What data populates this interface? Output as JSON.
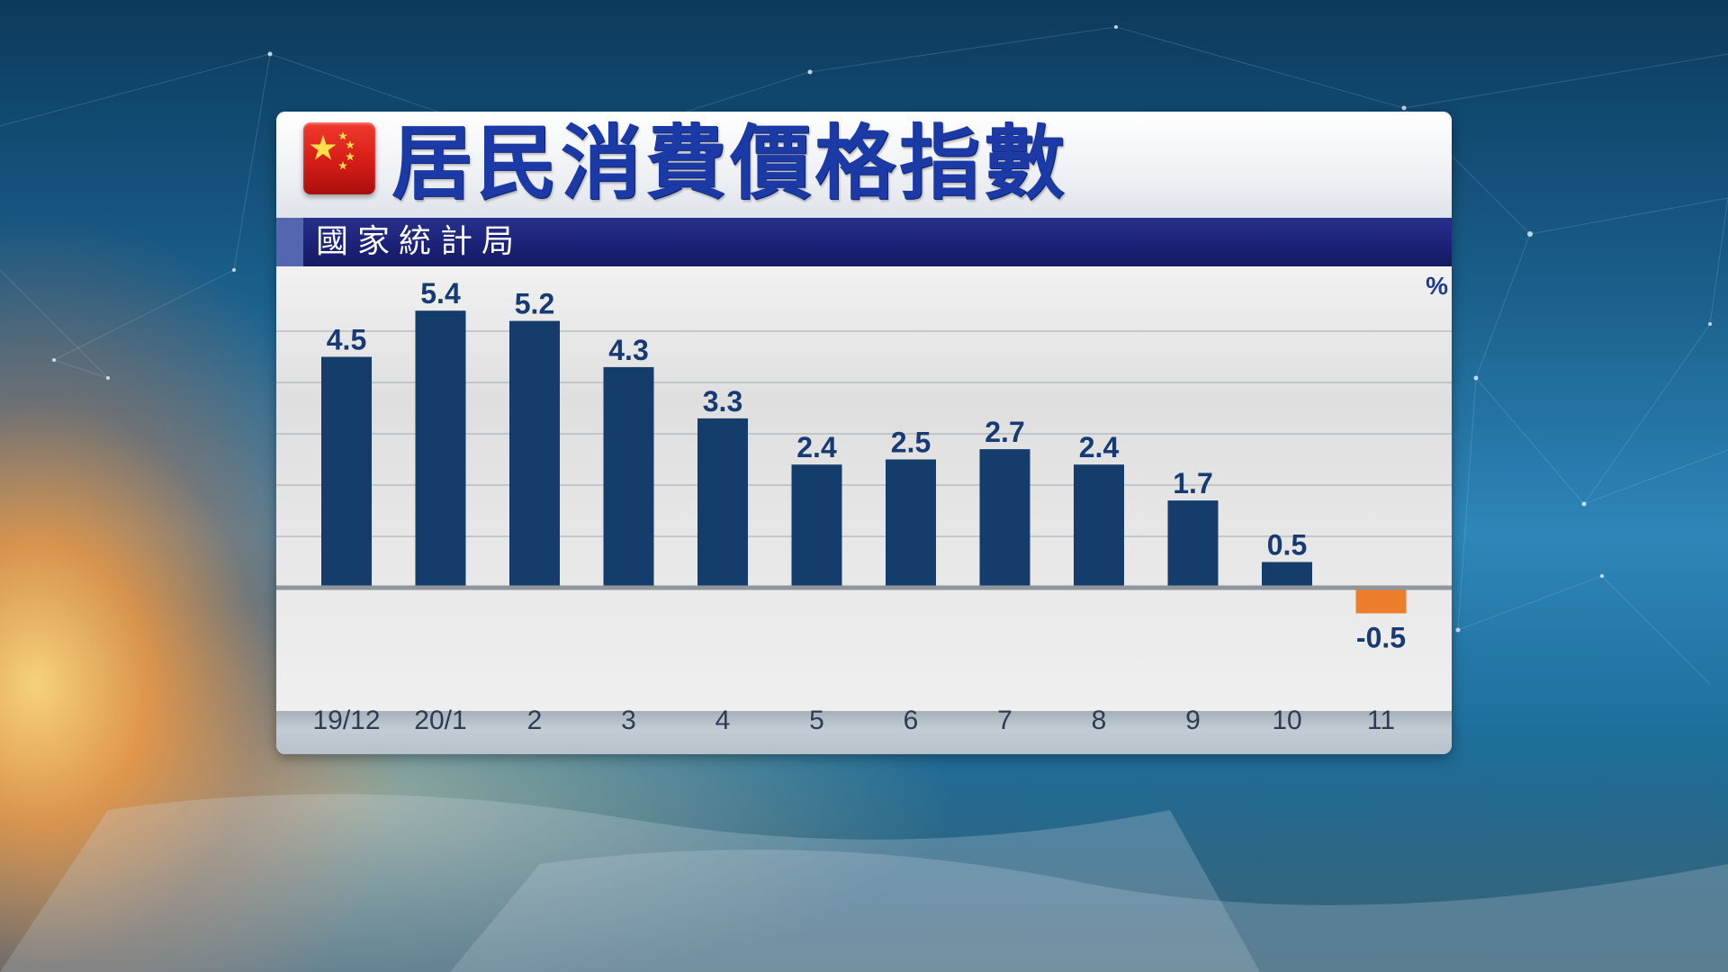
{
  "header": {
    "title": "居民消費價格指數",
    "source": "國家統計局",
    "unit": "%"
  },
  "colors": {
    "bar_positive": "#153d6b",
    "bar_negative": "#ec7d2c",
    "title": "#1c3aa6",
    "subtitle_bar": "#1c2277"
  },
  "chart_data": {
    "type": "bar",
    "title": "居民消費價格指數",
    "subtitle": "國家統計局",
    "ylabel": "%",
    "categories": [
      "19/12",
      "20/1",
      "2",
      "3",
      "4",
      "5",
      "6",
      "7",
      "8",
      "9",
      "10",
      "11"
    ],
    "values": [
      4.5,
      5.4,
      5.2,
      4.3,
      3.3,
      2.4,
      2.5,
      2.7,
      2.4,
      1.7,
      0.5,
      -0.5
    ],
    "data_labels": [
      "4.5",
      "5.4",
      "5.2",
      "4.3",
      "3.3",
      "2.4",
      "2.5",
      "2.7",
      "2.4",
      "1.7",
      "0.5",
      "-0.5"
    ],
    "ylim": [
      -1.5,
      6.5
    ],
    "grid": true,
    "legend": "none"
  }
}
